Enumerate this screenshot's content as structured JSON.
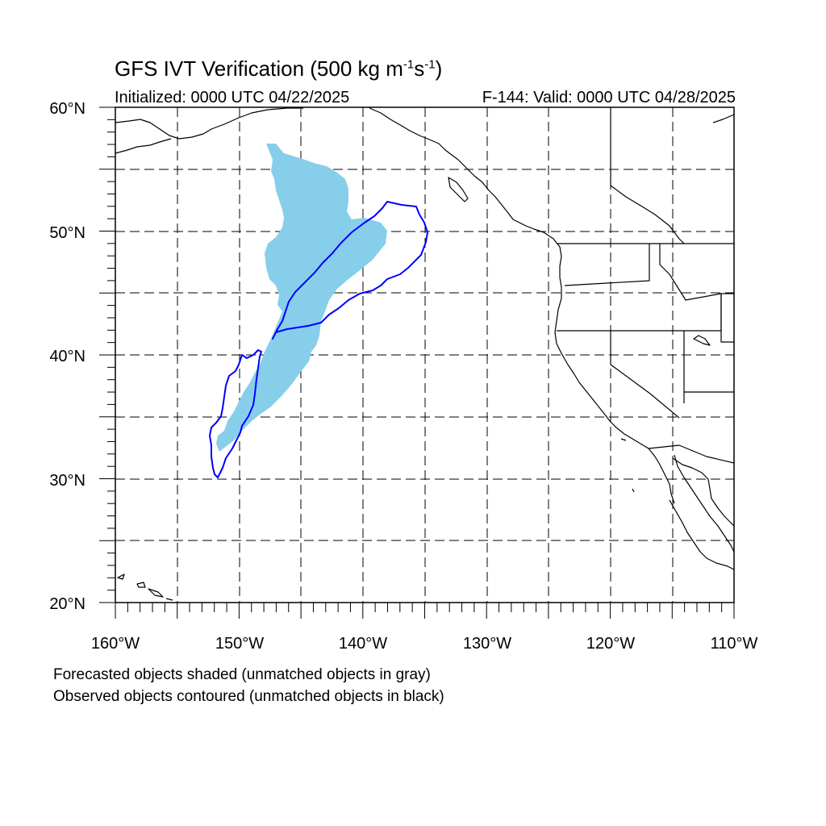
{
  "title": {
    "main": "GFS IVT Verification (500 kg m",
    "sup1": "-1",
    "mid": "s",
    "sup2": "-1",
    "end": ")"
  },
  "subtitle_left": "Initialized: 0000 UTC 04/22/2025",
  "subtitle_right": "F-144: Valid: 0000 UTC 04/28/2025",
  "footnotes": [
    "Forecasted objects shaded (unmatched objects in gray)",
    "Observed objects contoured (unmatched objects in black)"
  ],
  "map": {
    "lon_range": [
      -160,
      -110
    ],
    "lat_range": [
      20,
      60
    ],
    "lat_labels": [
      "60°N",
      "50°N",
      "40°N",
      "30°N",
      "20°N"
    ],
    "lon_labels": [
      "160°W",
      "150°W",
      "140°W",
      "130°W",
      "120°W",
      "110°W"
    ],
    "grid": "dashed, every 5 degrees",
    "colors": {
      "forecast_fill": "#87ceeb",
      "observed_contour": "#0000ff",
      "coastline": "#000000"
    }
  }
}
